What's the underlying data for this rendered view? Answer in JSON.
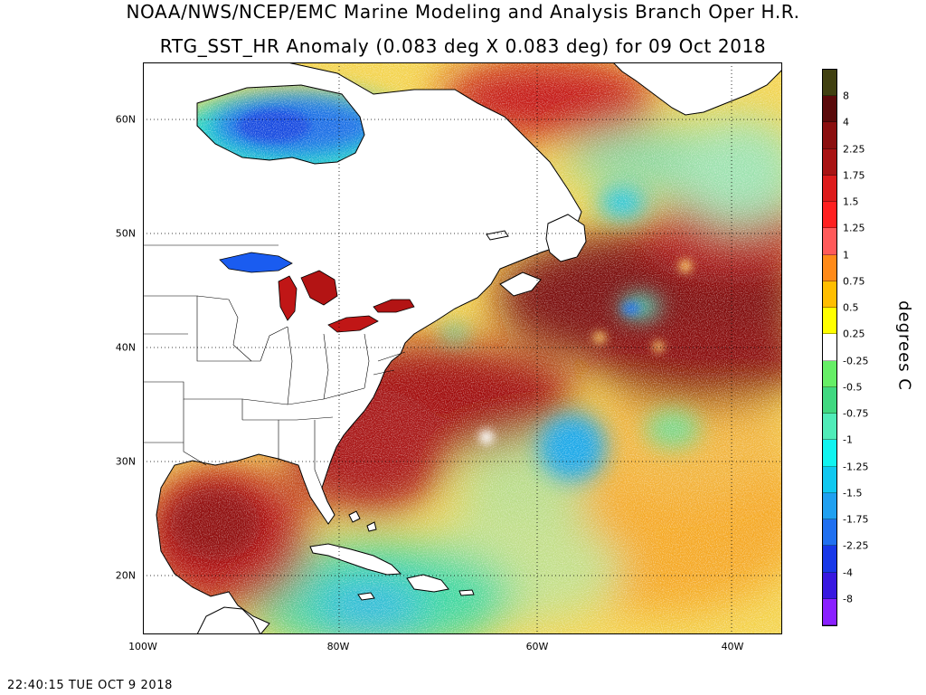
{
  "title_line1": "NOAA/NWS/NCEP/EMC Marine Modeling and Analysis Branch Oper H.R.",
  "title_line2": "RTG_SST_HR Anomaly (0.083 deg X 0.083 deg) for 09 Oct 2018",
  "x_ticks": [
    "100W",
    "80W",
    "60W",
    "40W"
  ],
  "y_ticks": [
    "60N",
    "50N",
    "40N",
    "30N",
    "20N"
  ],
  "colorbar": {
    "unit": "degrees C",
    "labels": [
      "8",
      "4",
      "2.25",
      "1.75",
      "1.5",
      "1.25",
      "1",
      "0.75",
      "0.5",
      "0.25",
      "-0.25",
      "-0.5",
      "-0.75",
      "-1",
      "-1.25",
      "-1.5",
      "-1.75",
      "-2.25",
      "-4",
      "-8"
    ],
    "colors": [
      "#404010",
      "#5a0a0a",
      "#8b0f0f",
      "#a81313",
      "#dd1b1b",
      "#ff2020",
      "#ff5a5a",
      "#ff8a18",
      "#ffbe00",
      "#ffff00",
      "#ffffff",
      "#66ee66",
      "#40d880",
      "#50ecb8",
      "#10f4f0",
      "#10c8f0",
      "#20a0f0",
      "#2070f0",
      "#1838e8",
      "#3818e0",
      "#8a20ff"
    ]
  },
  "timestamp": "22:40:15  TUE OCT 9 2018"
}
